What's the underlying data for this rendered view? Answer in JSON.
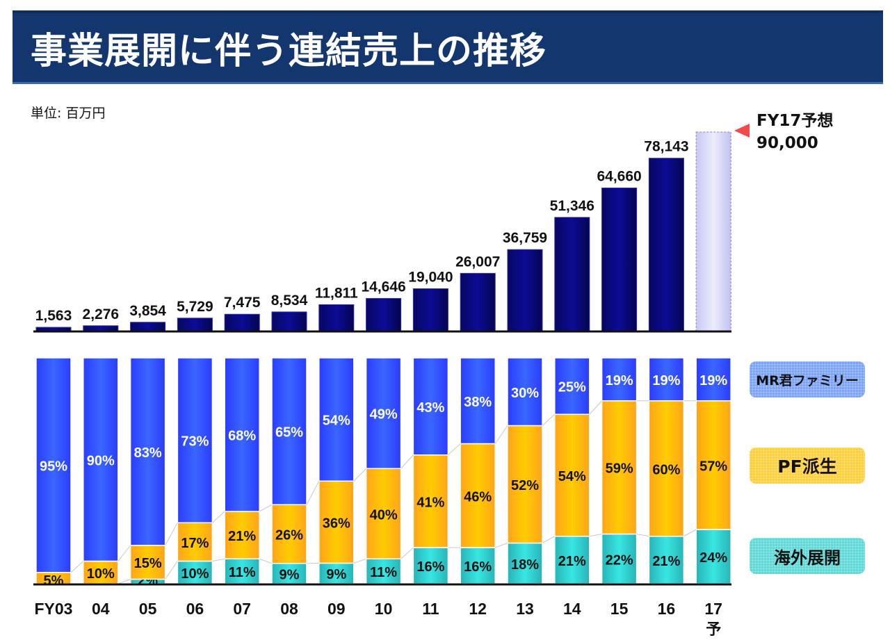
{
  "header": {
    "title": "事業展開に伴う連結売上の推移",
    "unit_label": "単位: 百万円"
  },
  "forecast_note": {
    "line1": "FY17予想",
    "line2": "90,000"
  },
  "colors": {
    "title_bg": "#14366f",
    "revenue_bar": "#0a0a80",
    "forecast_bar": "#dcdcfa",
    "mr_family": "#3355ff",
    "pf_derived": "#ffb400",
    "overseas": "#30cfd0",
    "arrow": "#f04a4a"
  },
  "chart_data": [
    {
      "type": "bar",
      "title": "連結売上",
      "unit": "百万円",
      "categories": [
        "FY03",
        "04",
        "05",
        "06",
        "07",
        "08",
        "09",
        "10",
        "11",
        "12",
        "13",
        "14",
        "15",
        "16",
        "17"
      ],
      "category_sublabels": [
        "",
        "",
        "",
        "",
        "",
        "",
        "",
        "",
        "",
        "",
        "",
        "",
        "",
        "",
        "予"
      ],
      "values": [
        1563,
        2276,
        3854,
        5729,
        7475,
        8534,
        11811,
        14646,
        19040,
        26007,
        36759,
        51346,
        64660,
        78143,
        90000
      ],
      "value_labels": [
        "1,563",
        "2,276",
        "3,854",
        "5,729",
        "7,475",
        "8,534",
        "11,811",
        "14,646",
        "19,040",
        "26,007",
        "36,759",
        "51,346",
        "64,660",
        "78,143",
        ""
      ],
      "forecast_index": 14,
      "ylim": [
        0,
        90000
      ],
      "grid": false
    },
    {
      "type": "bar",
      "stacked": "percent",
      "categories": [
        "FY03",
        "04",
        "05",
        "06",
        "07",
        "08",
        "09",
        "10",
        "11",
        "12",
        "13",
        "14",
        "15",
        "16",
        "17"
      ],
      "series": [
        {
          "name": "海外展開",
          "values": [
            0,
            0,
            2,
            10,
            11,
            9,
            9,
            11,
            16,
            16,
            18,
            21,
            22,
            21,
            24
          ]
        },
        {
          "name": "PF派生",
          "values": [
            5,
            10,
            15,
            17,
            21,
            26,
            36,
            40,
            41,
            46,
            52,
            54,
            59,
            60,
            57
          ]
        },
        {
          "name": "MR君ファミリー",
          "values": [
            95,
            90,
            83,
            73,
            68,
            65,
            54,
            49,
            43,
            38,
            30,
            25,
            19,
            19,
            19
          ]
        }
      ],
      "legend": [
        "MR君ファミリー",
        "PF派生",
        "海外展開"
      ],
      "legend_position": "right",
      "ylim": [
        0,
        100
      ]
    }
  ]
}
